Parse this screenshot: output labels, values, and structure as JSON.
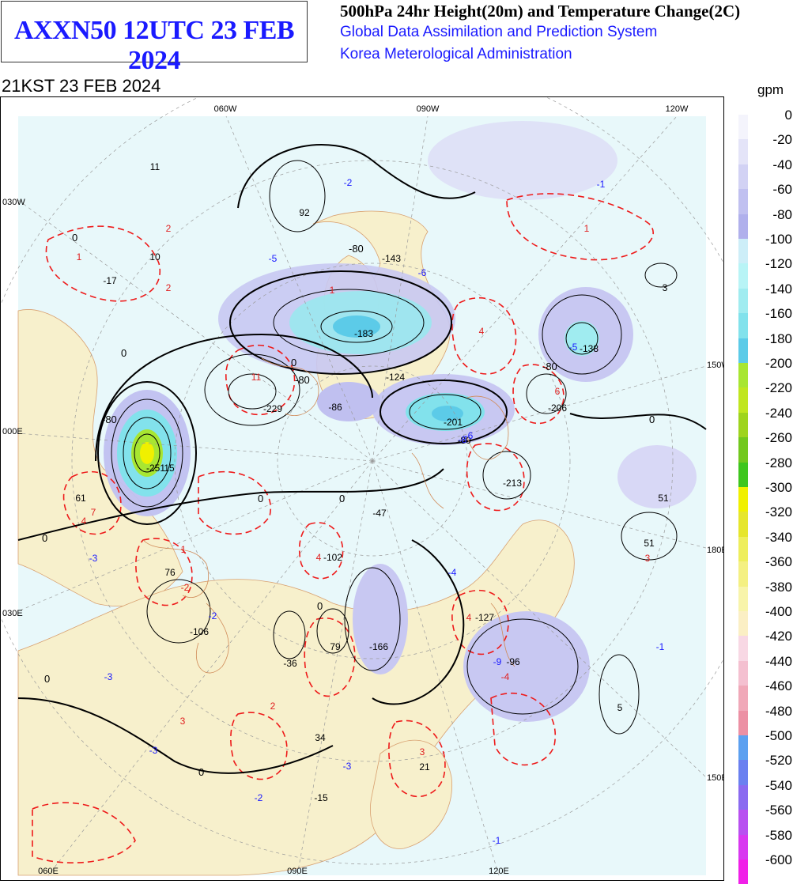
{
  "header": {
    "product_code": "AXXN50 12UTC 23 FEB 2024",
    "product_title": "500hPa 24hr Height(20m) and Temperature Change(2C)",
    "system_name": "Global Data Assimilation and Prediction System",
    "agency": "Korea Meterological Administration",
    "valid_time": "21KST 23 FEB 2024"
  },
  "legend": {
    "unit": "gpm",
    "levels": [
      "0",
      "-20",
      "-40",
      "-60",
      "-80",
      "-100",
      "-120",
      "-140",
      "-160",
      "-180",
      "-200",
      "-220",
      "-240",
      "-260",
      "-280",
      "-300",
      "-320",
      "-340",
      "-360",
      "-380",
      "-400",
      "-420",
      "-440",
      "-460",
      "-480",
      "-500",
      "-520",
      "-540",
      "-560",
      "-580",
      "-600"
    ],
    "colors": [
      "#f4f4fc",
      "#e4e4f8",
      "#d2d2f4",
      "#c0c0f0",
      "#b0b0ec",
      "#cdeef8",
      "#b8f4f6",
      "#a0ecf0",
      "#82e2ec",
      "#5ccbe8",
      "#a8e632",
      "#c0e620",
      "#9ed41e",
      "#72c81e",
      "#3ec61e",
      "#f0f000",
      "#e6e62c",
      "#eeee5c",
      "#f4f082",
      "#f8f4aa",
      "#fbefc4",
      "#f8d8e4",
      "#f4c0d0",
      "#f0a8b8",
      "#ec90a4",
      "#5ca0f0",
      "#6a80f0",
      "#8a6af0",
      "#b850f0",
      "#d838f0",
      "#f020e8"
    ]
  },
  "map": {
    "top_labels": [
      "060W",
      "090W",
      "120W"
    ],
    "bottom_labels": [
      "060E",
      "090E",
      "120E"
    ],
    "left_labels": [
      "030W",
      "000E",
      "030E"
    ],
    "right_labels": [
      "150W",
      "180E",
      "150E"
    ],
    "height_change_values": [
      "11",
      "10",
      "-17",
      "92",
      "-143",
      "-183",
      "-229",
      "-124",
      "-86",
      "-201",
      "-206",
      "-138",
      "3",
      "-251",
      "15",
      "61",
      "-47",
      "-102",
      "76",
      "-106",
      "-36",
      "79",
      "-166",
      "-127",
      "-96",
      "-213",
      "51",
      "5",
      "34",
      "21",
      "-15",
      "-80"
    ],
    "temperature_change_values": [
      "2",
      "1",
      "2",
      "-2",
      "-5",
      "-6",
      "-1",
      "1",
      "4",
      "-8",
      "-6",
      "-5",
      "1",
      "6",
      "11",
      "4",
      "7",
      "4",
      "-3",
      "-2",
      "-3",
      "-3",
      "4",
      "3",
      "2",
      "-2",
      "-3",
      "3",
      "-4",
      "-4",
      "-9",
      "-1",
      "3",
      "-1",
      "-2",
      "1"
    ]
  }
}
